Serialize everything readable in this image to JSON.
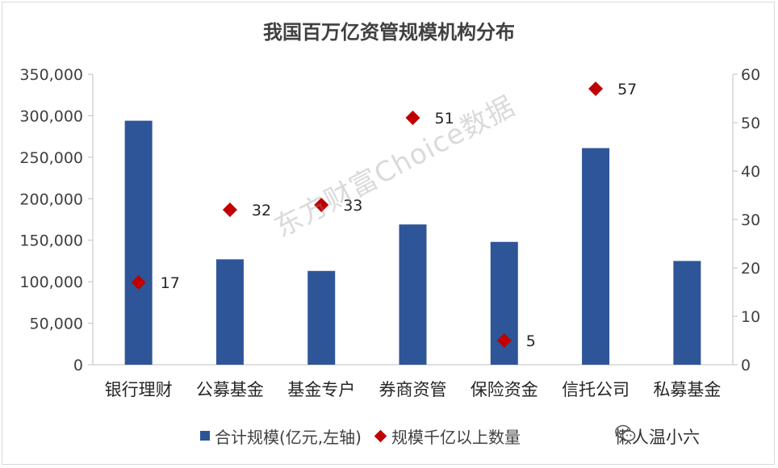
{
  "chart_data": {
    "type": "bar",
    "title": "我国百万亿资管规模机构分布",
    "categories": [
      "银行理财",
      "公募基金",
      "基金专户",
      "券商资管",
      "保险资金",
      "信托公司",
      "私募基金"
    ],
    "series": [
      {
        "name": "合计规模(亿元,左轴)",
        "type": "bar",
        "axis": "left",
        "values": [
          294000,
          127000,
          113000,
          169000,
          148000,
          261000,
          125000
        ]
      },
      {
        "name": "规模千亿以上数量",
        "type": "scatter",
        "axis": "right",
        "values": [
          17,
          32,
          33,
          51,
          5,
          57,
          null
        ],
        "labels": [
          "17",
          "32",
          "33",
          "51",
          "5",
          "57",
          ""
        ]
      }
    ],
    "y_left": {
      "range": [
        0,
        350000
      ],
      "ticks": [
        0,
        50000,
        100000,
        150000,
        200000,
        250000,
        300000,
        350000
      ],
      "tick_labels": [
        "0",
        "50,000",
        "100,000",
        "150,000",
        "200,000",
        "250,000",
        "300,000",
        "350,000"
      ]
    },
    "y_right": {
      "range": [
        0,
        60
      ],
      "ticks": [
        0,
        10,
        20,
        30,
        40,
        50,
        60
      ],
      "tick_labels": [
        "0",
        "10",
        "20",
        "30",
        "40",
        "50",
        "60"
      ]
    },
    "grid": false,
    "legend_position": "bottom",
    "colors": {
      "bar": "#2e5597",
      "marker": "#c00000"
    }
  },
  "watermark": "东方财富Choice数据",
  "brand": "懒人温小六",
  "brand_icon": "wechat-icon"
}
